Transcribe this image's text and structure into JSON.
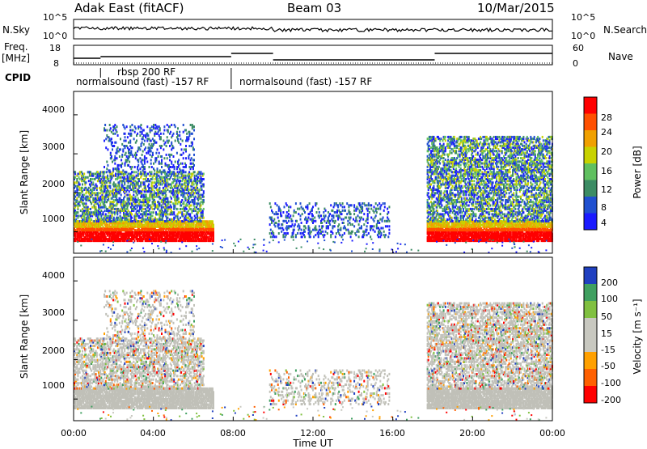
{
  "header": {
    "radar": "Adak East (fitACF)",
    "beam": "Beam 03",
    "date": "10/Mar/2015"
  },
  "sky_panel": {
    "left_label": "N.Sky",
    "right_label": "N.Search",
    "ticks_left": [
      "10^5",
      "10^0"
    ],
    "ticks_right": [
      "10^5",
      "10^0"
    ]
  },
  "freq_panel": {
    "left_label_1": "Freq.",
    "left_label_2": "[MHz]",
    "right_label": "Nave",
    "ticks_left": [
      "18",
      "8"
    ],
    "ticks_right": [
      "60",
      "0"
    ]
  },
  "cpid": {
    "label": "CPID",
    "segments": [
      {
        "text": "normalsound (fast) -157 RF",
        "start_hour": 0.0,
        "end_hour": 7.9
      },
      {
        "text": "rbsp 200 RF",
        "start_hour": 1.35,
        "end_hour": 7.9
      },
      {
        "text": "normalsound (fast) -157 RF",
        "start_hour": 7.9,
        "end_hour": 24.0
      }
    ]
  },
  "chart_data": [
    {
      "type": "heatmap",
      "parameter": "Power",
      "ylabel": "Slant Range [km]",
      "yticks": [
        1000,
        2000,
        3000,
        4000
      ],
      "ylim": [
        450,
        4600
      ],
      "colorbar": {
        "label": "Power [dB]",
        "ticks": [
          4,
          8,
          12,
          16,
          20,
          24,
          28
        ],
        "range": [
          0,
          32
        ]
      },
      "echo_regions": [
        {
          "t": [
            0.0,
            7.0
          ],
          "range_km": [
            800,
            1300
          ],
          "level": "strong"
        },
        {
          "t": [
            0.0,
            6.5
          ],
          "range_km": [
            1300,
            2600
          ],
          "level": "moderate"
        },
        {
          "t": [
            1.5,
            6.0
          ],
          "range_km": [
            2600,
            3800
          ],
          "level": "weak"
        },
        {
          "t": [
            9.8,
            15.8
          ],
          "range_km": [
            900,
            1800
          ],
          "level": "weak"
        },
        {
          "t": [
            17.7,
            24.0
          ],
          "range_km": [
            800,
            1300
          ],
          "level": "strong"
        },
        {
          "t": [
            17.7,
            24.0
          ],
          "range_km": [
            1300,
            3500
          ],
          "level": "moderate"
        }
      ]
    },
    {
      "type": "heatmap",
      "parameter": "Velocity",
      "ylabel": "Slant Range [km]",
      "yticks": [
        1000,
        2000,
        3000,
        4000
      ],
      "ylim": [
        450,
        4600
      ],
      "colorbar": {
        "label": "Velocity [m s⁻¹]",
        "ticks": [
          200,
          100,
          50,
          15,
          -15,
          -50,
          -100,
          -200
        ],
        "range": [
          -250,
          250
        ]
      },
      "xlabel": "Time UT",
      "xticks": [
        "00:00",
        "04:00",
        "08:00",
        "12:00",
        "16:00",
        "20:00",
        "00:00"
      ],
      "xlim_hours": [
        0,
        24
      ]
    }
  ],
  "colors": {
    "power_scale": [
      "#1a1aff",
      "#2050d0",
      "#3c8c64",
      "#60c060",
      "#c8d200",
      "#f0a000",
      "#ff5000",
      "#ff0000"
    ],
    "velocity_scale": [
      "#ff0000",
      "#ff6000",
      "#ffa000",
      "#c8c8c0",
      "#c8c8c0",
      "#80c040",
      "#40a060",
      "#2040c0"
    ],
    "ground_scatter": "#c0c0b8"
  }
}
